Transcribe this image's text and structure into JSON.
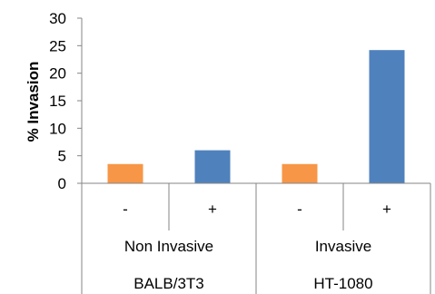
{
  "chart_data": {
    "type": "bar",
    "title": "",
    "xlabel": "",
    "ylabel": "% Invasion",
    "ylim": [
      0,
      30
    ],
    "yticks": [
      0,
      5,
      10,
      15,
      20,
      25,
      30
    ],
    "grid": false,
    "legend": "none",
    "categories": [
      "-",
      "+",
      "-",
      "+"
    ],
    "category_groups": [
      {
        "label": "Non Invasive",
        "sublabel": "BALB/3T3",
        "span": 2
      },
      {
        "label": "Invasive",
        "sublabel": "HT-1080",
        "span": 2
      }
    ],
    "values": [
      3.5,
      6.0,
      3.5,
      24.2
    ],
    "bar_colors": [
      "#f79646",
      "#4f81bd",
      "#f79646",
      "#4f81bd"
    ]
  }
}
